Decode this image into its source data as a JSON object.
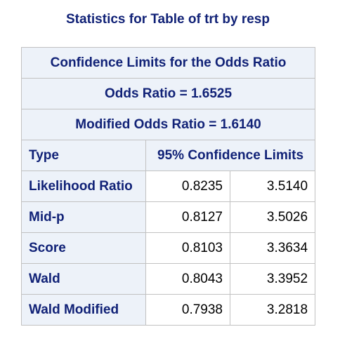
{
  "title": "Statistics for Table of trt by resp",
  "table": {
    "header1": "Confidence Limits for the Odds Ratio",
    "header2": "Odds Ratio = 1.6525",
    "header3": "Modified Odds Ratio = 1.6140",
    "col_type": "Type",
    "col_limits": "95% Confidence Limits",
    "rows": [
      {
        "type": "Likelihood Ratio",
        "lower": "0.8235",
        "upper": "3.5140"
      },
      {
        "type": "Mid-p",
        "lower": "0.8127",
        "upper": "3.5026"
      },
      {
        "type": "Score",
        "lower": "0.8103",
        "upper": "3.3634"
      },
      {
        "type": "Wald",
        "lower": "0.8043",
        "upper": "3.3952"
      },
      {
        "type": "Wald Modified",
        "lower": "0.7938",
        "upper": "3.2818"
      }
    ]
  }
}
